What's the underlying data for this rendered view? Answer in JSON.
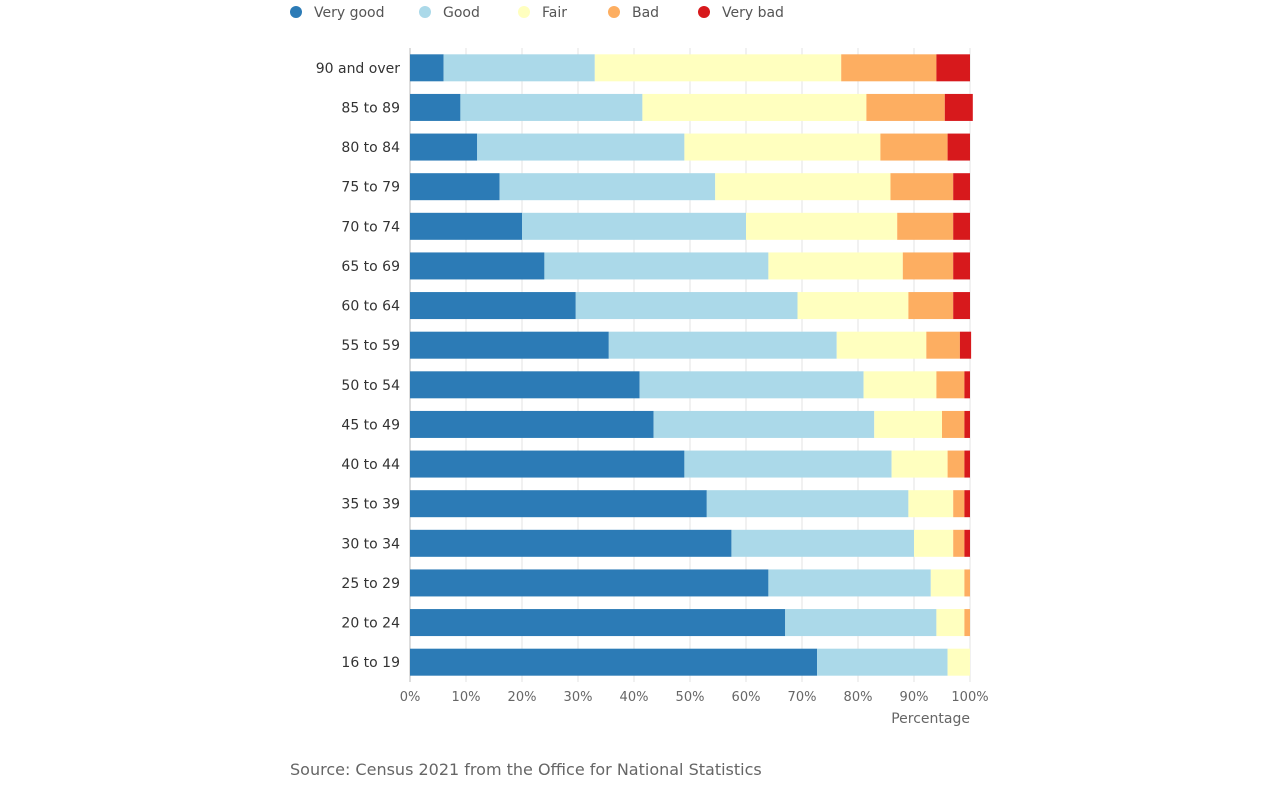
{
  "chart_data": {
    "type": "bar",
    "orientation": "horizontal",
    "stacked": true,
    "categories": [
      "90 and over",
      "85 to 89",
      "80 to 84",
      "75 to 79",
      "70 to 74",
      "65 to 69",
      "60 to 64",
      "55 to 59",
      "50 to 54",
      "45 to 49",
      "40 to 44",
      "35 to 39",
      "30 to 34",
      "25 to 29",
      "20 to 24",
      "16 to 19"
    ],
    "series": [
      {
        "name": "Very good",
        "color": "#2c7bb6",
        "values": [
          6,
          9,
          12,
          16,
          20,
          24,
          29.6,
          35.5,
          41,
          43.5,
          49,
          53,
          57.4,
          64,
          67,
          72.7
        ]
      },
      {
        "name": "Good",
        "color": "#abd9e9",
        "values": [
          27,
          32.5,
          37,
          38.5,
          40,
          40,
          39.6,
          40.7,
          40,
          39.4,
          37,
          36,
          32.6,
          29,
          27,
          23.3
        ]
      },
      {
        "name": "Fair",
        "color": "#ffffbf",
        "values": [
          44,
          40,
          35,
          31.3,
          27,
          24,
          19.8,
          16,
          13,
          12.1,
          10,
          8,
          7,
          6,
          5,
          4
        ]
      },
      {
        "name": "Bad",
        "color": "#fdae61",
        "values": [
          17,
          14,
          12,
          11.2,
          10,
          9,
          8,
          6,
          5,
          4,
          3,
          2,
          2,
          1,
          1,
          0
        ]
      },
      {
        "name": "Very bad",
        "color": "#d7191c",
        "values": [
          6,
          5,
          4,
          3,
          3,
          3,
          3,
          2,
          1,
          1,
          1,
          1,
          1,
          0,
          0,
          0
        ]
      }
    ],
    "xlim": [
      0,
      100
    ],
    "xticks": [
      "0%",
      "10%",
      "20%",
      "30%",
      "40%",
      "50%",
      "60%",
      "70%",
      "80%",
      "90%",
      "100%"
    ],
    "xlabel": "Percentage",
    "legend_position": "top",
    "grid": true
  },
  "source": "Source: Census 2021 from the Office for National Statistics"
}
